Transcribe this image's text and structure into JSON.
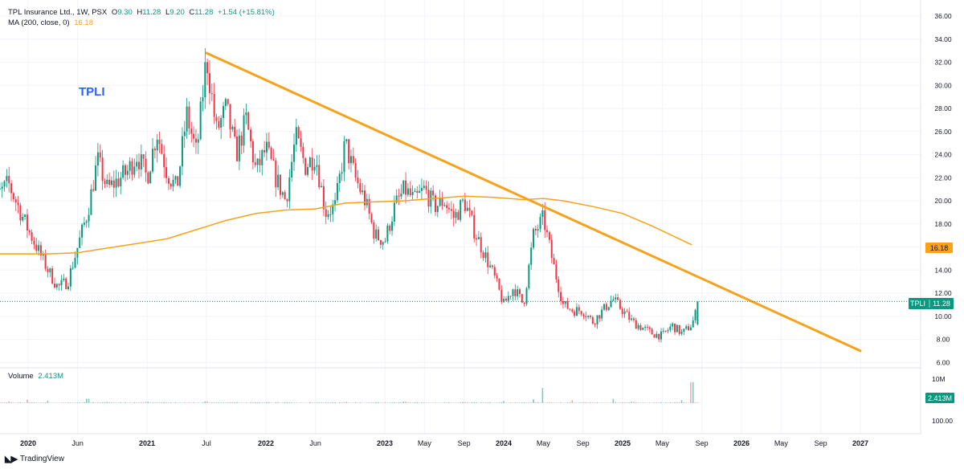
{
  "legend": {
    "title": "TPL Insurance Ltd., 1W, PSX",
    "o_label": "O",
    "o": "9.30",
    "h_label": "H",
    "h": "11.28",
    "l_label": "L",
    "l": "9.20",
    "c_label": "C",
    "c": "11.28",
    "change": "+1.54 (+15.81%)",
    "ma_title": "MA (200, close, 0)",
    "ma_value": "16.18",
    "volume_title": "Volume",
    "volume_value": "2.413M"
  },
  "annotation": "TPLI",
  "badges": {
    "ma": "16.18",
    "price_symbol": "TPLI",
    "price": "11.28",
    "volume": "2.413M"
  },
  "brand": "TradingView",
  "colors": {
    "up": "#089981",
    "down": "#f23645",
    "ma": "#f7a21b",
    "trendline": "#f7a21b",
    "grid": "#f0f3fa",
    "text": "#131722",
    "price_line": "#089981"
  },
  "chart_data": [
    {
      "type": "candlestick",
      "price_axis": {
        "ylim": [
          6,
          36
        ],
        "ticks": [
          "36.00",
          "34.00",
          "32.00",
          "30.00",
          "28.00",
          "26.00",
          "24.00",
          "22.00",
          "20.00",
          "18.00",
          "16.00",
          "14.00",
          "12.00",
          "10.00",
          "8.00",
          "6.00"
        ]
      },
      "time_axis": {
        "labels": [
          "2020",
          "Jun",
          "2021",
          "Jul",
          "2022",
          "Jun",
          "2023",
          "May",
          "Sep",
          "2024",
          "May",
          "Sep",
          "2025",
          "May",
          "Sep",
          "2026",
          "May",
          "Sep",
          "2027"
        ],
        "positions": [
          "2020-01",
          "2020-06",
          "2021-01",
          "2021-07",
          "2022-01",
          "2022-06",
          "2023-01",
          "2023-05",
          "2023-09",
          "2024-01",
          "2024-05",
          "2024-09",
          "2025-01",
          "2025-05",
          "2025-09",
          "2026-01",
          "2026-05",
          "2026-09",
          "2027-01"
        ]
      },
      "price_path": [
        [
          "2019-09",
          19.5
        ],
        [
          "2019-11",
          21.5
        ],
        [
          "2020-01",
          17.5
        ],
        [
          "2020-03",
          14.0
        ],
        [
          "2020-04",
          12.5
        ],
        [
          "2020-05",
          13.0
        ],
        [
          "2020-07",
          19.0
        ],
        [
          "2020-08",
          23.5
        ],
        [
          "2020-09",
          21.0
        ],
        [
          "2020-11",
          22.5
        ],
        [
          "2020-12",
          24.0
        ],
        [
          "2021-01",
          22.0
        ],
        [
          "2021-02",
          26.0
        ],
        [
          "2021-03",
          22.5
        ],
        [
          "2021-04",
          21.0
        ],
        [
          "2021-05",
          27.5
        ],
        [
          "2021-06",
          24.0
        ],
        [
          "2021-07",
          32.5
        ],
        [
          "2021-08",
          26.0
        ],
        [
          "2021-09",
          28.0
        ],
        [
          "2021-10",
          24.0
        ],
        [
          "2021-11",
          27.0
        ],
        [
          "2021-12",
          22.5
        ],
        [
          "2022-01",
          24.5
        ],
        [
          "2022-02",
          22.0
        ],
        [
          "2022-03",
          20.0
        ],
        [
          "2022-04",
          25.5
        ],
        [
          "2022-05",
          23.0
        ],
        [
          "2022-06",
          24.0
        ],
        [
          "2022-07",
          19.0
        ],
        [
          "2022-08",
          19.5
        ],
        [
          "2022-09",
          25.0
        ],
        [
          "2022-10",
          22.0
        ],
        [
          "2022-11",
          20.0
        ],
        [
          "2022-12",
          17.0
        ],
        [
          "2023-01",
          16.5
        ],
        [
          "2023-02",
          19.5
        ],
        [
          "2023-03",
          21.0
        ],
        [
          "2023-04",
          20.0
        ],
        [
          "2023-05",
          21.0
        ],
        [
          "2023-06",
          19.5
        ],
        [
          "2023-07",
          20.0
        ],
        [
          "2023-08",
          18.5
        ],
        [
          "2023-09",
          20.0
        ],
        [
          "2023-10",
          17.5
        ],
        [
          "2023-11",
          15.5
        ],
        [
          "2023-12",
          13.5
        ],
        [
          "2024-01",
          11.0
        ],
        [
          "2024-02",
          12.5
        ],
        [
          "2024-03",
          11.0
        ],
        [
          "2024-04",
          17.0
        ],
        [
          "2024-05",
          18.5
        ],
        [
          "2024-06",
          14.5
        ],
        [
          "2024-07",
          11.0
        ],
        [
          "2024-08",
          10.5
        ],
        [
          "2024-09",
          10.5
        ],
        [
          "2024-10",
          9.5
        ],
        [
          "2024-11",
          10.5
        ],
        [
          "2024-12",
          11.5
        ],
        [
          "2025-01",
          10.5
        ],
        [
          "2025-02",
          9.5
        ],
        [
          "2025-03",
          9.0
        ],
        [
          "2025-04",
          8.5
        ],
        [
          "2025-05",
          8.3
        ],
        [
          "2025-06",
          9.2
        ],
        [
          "2025-07",
          8.5
        ],
        [
          "2025-08",
          9.3
        ],
        [
          "2025-08-25",
          11.28
        ]
      ],
      "last_price": 11.28
    },
    {
      "type": "line",
      "name": "MA (200, close, 0)",
      "points": [
        [
          "2019-09",
          15.4
        ],
        [
          "2020-03",
          15.4
        ],
        [
          "2020-06",
          15.5
        ],
        [
          "2020-09",
          15.9
        ],
        [
          "2020-12",
          16.3
        ],
        [
          "2021-03",
          16.7
        ],
        [
          "2021-06",
          17.5
        ],
        [
          "2021-09",
          18.3
        ],
        [
          "2021-12",
          18.9
        ],
        [
          "2022-03",
          19.2
        ],
        [
          "2022-06",
          19.3
        ],
        [
          "2022-09",
          19.8
        ],
        [
          "2022-12",
          19.9
        ],
        [
          "2023-03",
          20.0
        ],
        [
          "2023-06",
          20.2
        ],
        [
          "2023-09",
          20.4
        ],
        [
          "2023-12",
          20.3
        ],
        [
          "2024-03",
          20.1
        ],
        [
          "2024-05",
          20.2
        ],
        [
          "2024-07",
          20.0
        ],
        [
          "2024-10",
          19.5
        ],
        [
          "2025-01",
          18.9
        ],
        [
          "2025-04",
          17.8
        ],
        [
          "2025-08",
          16.18
        ]
      ]
    },
    {
      "type": "line",
      "name": "trendline",
      "points": [
        [
          "2021-07",
          32.8
        ],
        [
          "2027-01",
          7.0
        ]
      ]
    },
    {
      "type": "bar",
      "name": "Volume",
      "axis_ticks": [
        "10M",
        "0",
        "100.00"
      ],
      "values_millions": [
        [
          "2019-11",
          0.8
        ],
        [
          "2020-01",
          1.8
        ],
        [
          "2020-03",
          1.2
        ],
        [
          "2020-07",
          2.2
        ],
        [
          "2020-09",
          0.6
        ],
        [
          "2021-01",
          0.7
        ],
        [
          "2021-07",
          0.9
        ],
        [
          "2022-01",
          0.5
        ],
        [
          "2022-09",
          0.6
        ],
        [
          "2023-03",
          0.8
        ],
        [
          "2023-09",
          0.6
        ],
        [
          "2024-01",
          1.1
        ],
        [
          "2024-04",
          2.0
        ],
        [
          "2024-05",
          7.5
        ],
        [
          "2024-08",
          1.5
        ],
        [
          "2024-12",
          2.2
        ],
        [
          "2025-02",
          0.7
        ],
        [
          "2025-07",
          1.5
        ],
        [
          "2025-08",
          10.5
        ],
        [
          "2025-08-25",
          2.413
        ]
      ]
    }
  ]
}
